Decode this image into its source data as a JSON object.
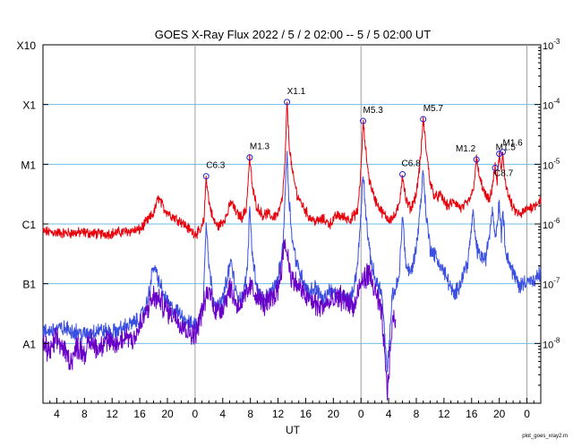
{
  "title": "GOES X-Ray Flux   2022 /  5 /  2   02:00 --  5 /  5   02:00   UT",
  "credit": "plot_goes_xray2.m",
  "colors": {
    "long_channel": "#e8000b",
    "short_channel_primary": "#3a4fe0",
    "short_channel_secondary": "#6a00c8",
    "gridline": "#6fbfe8",
    "day_boundary": "#a0a0a0",
    "flare_marker": "#2222cc"
  },
  "chart_data": {
    "type": "line",
    "title": "GOES X-Ray Flux   2022 /  5 /  2   02:00 --  5 /  5   02:00   UT",
    "xlabel": "UT",
    "ylabel": "",
    "x_unit": "hours since 2022-05-02 02:00 UT",
    "xlim": [
      0,
      72
    ],
    "ylim": [
      1e-09,
      0.001
    ],
    "yscale": "log",
    "grid": "horizontal lines at class boundaries",
    "x_ticks": [
      {
        "x": 2,
        "label": "4"
      },
      {
        "x": 6,
        "label": "8"
      },
      {
        "x": 10,
        "label": "12"
      },
      {
        "x": 14,
        "label": "16"
      },
      {
        "x": 18,
        "label": "20"
      },
      {
        "x": 22,
        "label": "0"
      },
      {
        "x": 26,
        "label": "4"
      },
      {
        "x": 30,
        "label": "8"
      },
      {
        "x": 34,
        "label": "12"
      },
      {
        "x": 38,
        "label": "16"
      },
      {
        "x": 42,
        "label": "20"
      },
      {
        "x": 46,
        "label": "0"
      },
      {
        "x": 50,
        "label": "4"
      },
      {
        "x": 54,
        "label": "8"
      },
      {
        "x": 58,
        "label": "12"
      },
      {
        "x": 62,
        "label": "16"
      },
      {
        "x": 66,
        "label": "20"
      },
      {
        "x": 70,
        "label": "0"
      }
    ],
    "day_boundaries": [
      22,
      46,
      70
    ],
    "left_axis_classes": [
      {
        "label": "X10",
        "value": 0.001
      },
      {
        "label": "X1",
        "value": 0.0001
      },
      {
        "label": "M1",
        "value": 1e-05
      },
      {
        "label": "C1",
        "value": 1e-06
      },
      {
        "label": "B1",
        "value": 1e-07
      },
      {
        "label": "A1",
        "value": 1e-08
      }
    ],
    "right_axis_ticks": [
      {
        "value": 0.001,
        "mantissa": "10",
        "exponent": "-3"
      },
      {
        "value": 0.0001,
        "mantissa": "10",
        "exponent": "-4"
      },
      {
        "value": 1e-05,
        "mantissa": "10",
        "exponent": "-5"
      },
      {
        "value": 1e-06,
        "mantissa": "10",
        "exponent": "-6"
      },
      {
        "value": 1e-07,
        "mantissa": "10",
        "exponent": "-7"
      },
      {
        "value": 1e-08,
        "mantissa": "10",
        "exponent": "-8"
      }
    ],
    "flares": [
      {
        "label": "C6.3",
        "x": 23.6,
        "value": 6.3e-06
      },
      {
        "label": "M1.3",
        "x": 29.9,
        "value": 1.3e-05
      },
      {
        "label": "X1.1",
        "x": 35.3,
        "value": 0.00011
      },
      {
        "label": "M5.3",
        "x": 46.3,
        "value": 5.3e-05
      },
      {
        "label": "C6.8",
        "x": 52.0,
        "value": 6.8e-06
      },
      {
        "label": "M5.7",
        "x": 55.0,
        "value": 5.7e-05
      },
      {
        "label": "M1.2",
        "x": 62.7,
        "value": 1.2e-05
      },
      {
        "label": "C8.7",
        "x": 65.4,
        "value": 8.7e-06
      },
      {
        "label": "M1.5",
        "x": 66.0,
        "value": 1.5e-05
      },
      {
        "label": "M1.6",
        "x": 66.5,
        "value": 1.6e-05
      }
    ],
    "series": [
      {
        "channel": "long",
        "color": "#e8000b",
        "x": [
          0,
          3,
          6,
          8,
          10,
          12,
          14,
          15,
          16,
          16.7,
          17.5,
          18.5,
          20,
          21,
          21.5,
          22,
          22.8,
          23.3,
          23.6,
          24.0,
          24.6,
          25.3,
          26,
          26.6,
          27.2,
          28,
          28.8,
          29.4,
          29.9,
          30.3,
          30.9,
          31.8,
          32.5,
          33.2,
          34,
          34.6,
          35,
          35.3,
          35.6,
          36.1,
          36.8,
          37.6,
          38.5,
          39.5,
          40.5,
          41.5,
          42.5,
          43.5,
          44.5,
          45.5,
          46.0,
          46.3,
          46.7,
          47.2,
          48,
          49,
          50,
          50.8,
          51.5,
          52.0,
          52.5,
          53.2,
          54.0,
          54.6,
          55.0,
          55.4,
          56,
          56.7,
          57.5,
          58.5,
          59.5,
          60.5,
          61.5,
          62.2,
          62.7,
          63.2,
          64,
          64.6,
          65.0,
          65.4,
          65.7,
          66.0,
          66.3,
          66.5,
          66.8,
          67.3,
          68,
          69,
          70,
          71,
          72
        ],
        "values": [
          7.5e-07,
          7e-07,
          7.2e-07,
          6.8e-07,
          7e-07,
          7.5e-07,
          8e-07,
          1.1e-06,
          1.5e-06,
          2.8e-06,
          1.8e-06,
          1.4e-06,
          1.1e-06,
          8.5e-07,
          7.5e-07,
          7e-07,
          7.5e-07,
          1.2e-06,
          6.3e-06,
          2.4e-06,
          1.2e-06,
          9e-07,
          1.1e-06,
          1.4e-06,
          2.4e-06,
          1.5e-06,
          1.3e-06,
          1.8e-06,
          1.3e-05,
          4e-06,
          2e-06,
          1.4e-06,
          1.5e-06,
          1.3e-06,
          1.5e-06,
          2.5e-06,
          1e-05,
          0.00011,
          2.2e-05,
          7e-06,
          3e-06,
          2e-06,
          1.3e-06,
          1.1e-06,
          1.2e-06,
          1e-06,
          1.4e-06,
          1.3e-06,
          1.2e-06,
          1.6e-06,
          8e-06,
          5.3e-05,
          1.6e-05,
          5.5e-06,
          2.6e-06,
          1.6e-06,
          1.2e-06,
          1.3e-06,
          2e-06,
          6.8e-06,
          2.5e-06,
          1.8e-06,
          3.2e-06,
          1.2e-05,
          5.7e-05,
          1.9e-05,
          5e-06,
          2.8e-06,
          3e-06,
          2e-06,
          2.4e-06,
          1.8e-06,
          2.3e-06,
          3.5e-06,
          1.2e-05,
          5.5e-06,
          3e-06,
          2.4e-06,
          4.5e-06,
          8.7e-06,
          5e-06,
          1.5e-05,
          7e-06,
          1.6e-05,
          6e-06,
          3e-06,
          1.8e-06,
          1.4e-06,
          1.8e-06,
          2e-06,
          2.6e-06
        ]
      },
      {
        "channel": "short",
        "color": "#3a4fe0",
        "x": [
          0,
          2,
          4,
          6,
          8,
          10,
          12,
          14,
          15,
          16,
          16.7,
          17.5,
          18.5,
          20,
          21.5,
          22.5,
          23.2,
          23.6,
          24.0,
          24.6,
          25.3,
          26,
          27.2,
          28,
          29.0,
          29.6,
          29.9,
          30.3,
          31,
          32,
          33,
          34,
          34.7,
          35.0,
          35.3,
          35.6,
          36.1,
          36.8,
          37.6,
          38.5,
          39.5,
          40.5,
          41.5,
          42.5,
          43.5,
          44.5,
          45.5,
          46.0,
          46.3,
          46.7,
          47.2,
          48,
          49,
          49.8,
          50.5,
          51.5,
          52.0,
          52.5,
          53.2,
          54.0,
          54.6,
          55.0,
          55.4,
          56,
          56.7,
          57.5,
          58.5,
          59.5,
          60.5,
          61.5,
          62.2,
          62.7,
          63.2,
          64,
          64.6,
          65.0,
          65.4,
          65.7,
          66.0,
          66.3,
          66.5,
          66.8,
          67.3,
          68,
          69,
          70,
          71,
          72
        ],
        "values": [
          1.5e-08,
          1.8e-08,
          1.7e-08,
          1.4e-08,
          1.7e-08,
          1.5e-08,
          1.9e-08,
          2.5e-08,
          4.5e-08,
          2e-07,
          1.2e-07,
          6e-08,
          4e-08,
          3e-08,
          2e-08,
          2.2e-08,
          5e-08,
          1.3e-06,
          2e-07,
          6e-08,
          4e-08,
          5.5e-08,
          2.5e-07,
          6e-08,
          6e-08,
          2e-07,
          2e-06,
          3e-07,
          8e-08,
          5e-08,
          7e-08,
          1.2e-07,
          4e-07,
          3e-06,
          1.5e-05,
          2.5e-06,
          5e-07,
          2e-07,
          1.2e-07,
          7e-08,
          9e-08,
          5e-08,
          8e-08,
          6e-08,
          6.5e-08,
          5e-08,
          2e-07,
          1.5e-06,
          8e-06,
          1.5e-06,
          3.5e-07,
          1.2e-07,
          7e-08,
          3e-09,
          6e-08,
          1.2e-07,
          1.5e-06,
          2e-07,
          1.5e-07,
          4e-07,
          2e-06,
          8e-06,
          1.5e-06,
          4e-07,
          3e-07,
          2e-07,
          1.2e-07,
          6e-08,
          1.2e-07,
          2.5e-07,
          1.5e-06,
          4e-07,
          3e-07,
          2.5e-07,
          7e-07,
          2e-06,
          6e-07,
          1e-06,
          2.5e-06,
          6e-07,
          2e-06,
          5e-07,
          2.5e-07,
          1.5e-07,
          9e-08,
          1.2e-07,
          1e-07,
          1.6e-07
        ]
      },
      {
        "channel": "short-secondary",
        "color": "#6a00c8",
        "x": [
          0,
          1,
          2,
          3,
          4,
          5,
          6,
          7,
          8,
          9,
          10,
          11,
          12,
          13,
          14,
          15,
          16,
          17,
          18,
          19,
          20,
          21,
          22,
          23,
          24,
          25,
          26,
          27,
          28,
          29,
          30,
          31,
          32,
          33,
          34,
          35,
          36,
          37,
          38,
          39,
          40,
          41,
          42,
          43,
          44,
          45,
          46,
          47,
          48,
          49,
          49.8,
          50.5,
          51
        ],
        "values": [
          1e-08,
          7e-09,
          1.2e-08,
          8e-09,
          5e-09,
          9e-09,
          7e-09,
          1.1e-08,
          8e-09,
          1.2e-08,
          9e-09,
          1e-08,
          1.4e-08,
          1.2e-08,
          1.8e-08,
          3.5e-08,
          6e-08,
          5e-08,
          3.5e-08,
          3e-08,
          2.2e-08,
          1.6e-08,
          1.4e-08,
          3.5e-08,
          8e-08,
          3.5e-08,
          4e-08,
          9e-08,
          4.5e-08,
          5e-08,
          9e-08,
          6e-08,
          4.5e-08,
          5.5e-08,
          8e-08,
          5e-07,
          1.2e-07,
          9e-08,
          6e-08,
          5e-08,
          4e-08,
          4.5e-08,
          5e-08,
          6e-08,
          5e-08,
          4e-08,
          1e-07,
          1.5e-07,
          8e-08,
          3e-08,
          1.5e-09,
          2e-08,
          3e-08
        ]
      }
    ]
  }
}
